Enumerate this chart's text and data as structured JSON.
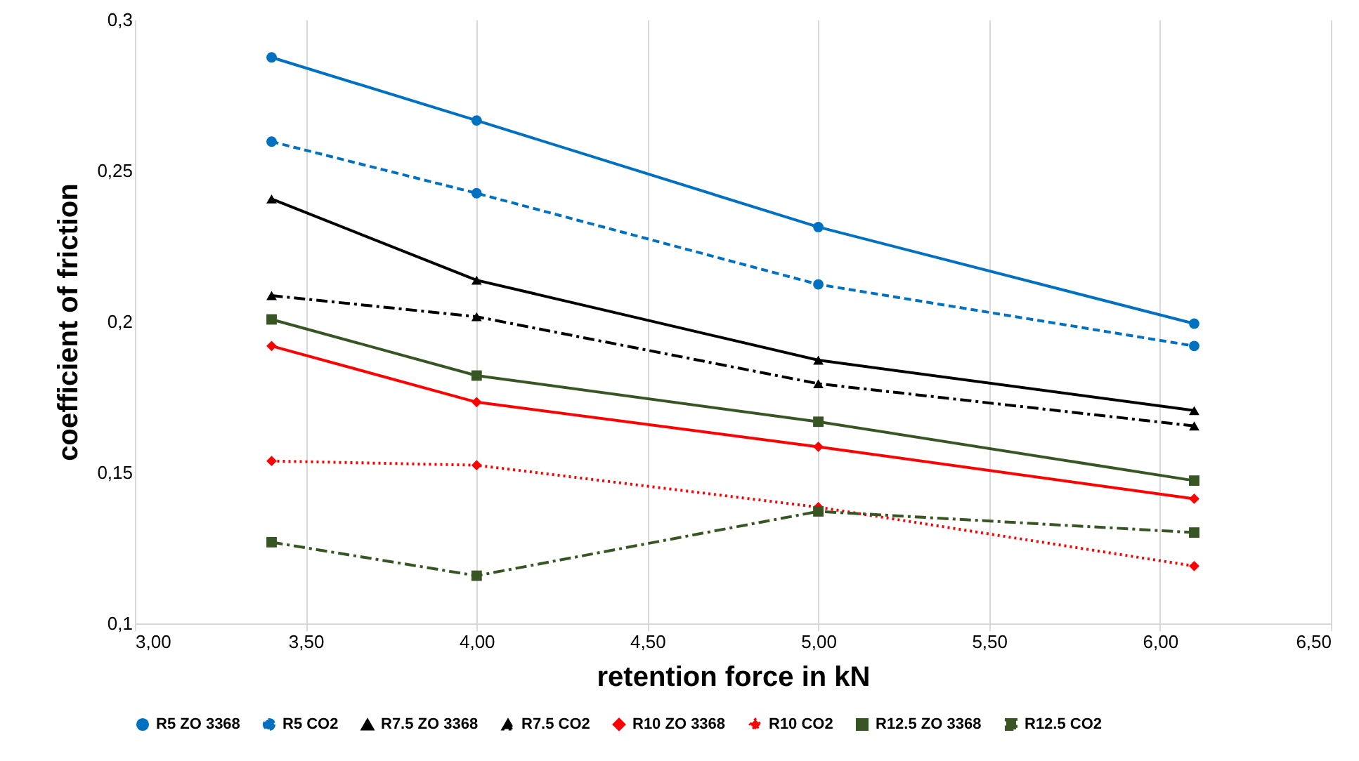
{
  "chart_data": {
    "type": "line",
    "xlabel": "retention force in kN",
    "ylabel": "coefficient of friction",
    "x": [
      3.4,
      4.0,
      5.0,
      6.1
    ],
    "series": [
      {
        "name": "R5 ZO 3368",
        "color": "#0070c0",
        "marker": "circle",
        "line_style": "solid",
        "values": [
          0.2875,
          0.2666,
          0.2313,
          0.1993
        ]
      },
      {
        "name": "R5 CO2",
        "color": "#0070c0",
        "marker": "circle",
        "line_style": "dashed",
        "values": [
          0.2596,
          0.2425,
          0.2123,
          0.1919
        ]
      },
      {
        "name": "R7.5 ZO 3368",
        "color": "#000000",
        "marker": "triangle",
        "line_style": "solid",
        "values": [
          0.2406,
          0.2137,
          0.1872,
          0.1705
        ]
      },
      {
        "name": "R7.5 CO2",
        "color": "#000000",
        "marker": "triangle",
        "line_style": "dashdot",
        "values": [
          0.2086,
          0.2016,
          0.1794,
          0.1654
        ]
      },
      {
        "name": "R10 ZO 3368",
        "color": "#ff0000",
        "marker": "diamond",
        "line_style": "solid",
        "values": [
          0.1919,
          0.1733,
          0.1585,
          0.1413
        ]
      },
      {
        "name": "R10 CO2",
        "color": "#ff0000",
        "marker": "diamond",
        "line_style": "dotted",
        "values": [
          0.1538,
          0.1524,
          0.1385,
          0.119
        ]
      },
      {
        "name": "R12.5 ZO 3368",
        "color": "#375623",
        "marker": "square",
        "line_style": "solid",
        "values": [
          0.2007,
          0.1821,
          0.1668,
          0.1473
        ]
      },
      {
        "name": "R12.5 CO2",
        "color": "#375623",
        "marker": "square",
        "line_style": "dashdot",
        "values": [
          0.1269,
          0.1158,
          0.1371,
          0.1301
        ]
      }
    ],
    "xlim": [
      3.0,
      6.5
    ],
    "xticks": [
      {
        "value": 3.0,
        "label": "3,00"
      },
      {
        "value": 3.5,
        "label": "3,50"
      },
      {
        "value": 4.0,
        "label": "4,00"
      },
      {
        "value": 4.5,
        "label": "4,50"
      },
      {
        "value": 5.0,
        "label": "5,00"
      },
      {
        "value": 5.5,
        "label": "5,50"
      },
      {
        "value": 6.0,
        "label": "6,00"
      },
      {
        "value": 6.5,
        "label": "6,50"
      }
    ],
    "ylim": [
      0.1,
      0.3
    ],
    "yticks": [
      {
        "value": 0.1,
        "label": "0,1"
      },
      {
        "value": 0.15,
        "label": "0,15"
      },
      {
        "value": 0.2,
        "label": "0,2"
      },
      {
        "value": 0.25,
        "label": "0,25"
      },
      {
        "value": 0.3,
        "label": "0,3"
      }
    ],
    "grid": "x",
    "legend": "bottom"
  }
}
